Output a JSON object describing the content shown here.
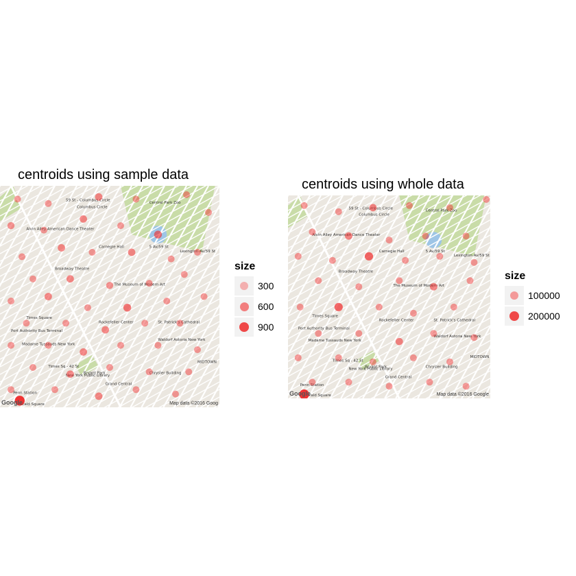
{
  "panels": [
    {
      "title": "centroids using sample data",
      "legend": {
        "title": "size",
        "keys": [
          {
            "label": "300",
            "color": "#f3a3a3"
          },
          {
            "label": "600",
            "color": "#f26a6a"
          },
          {
            "label": "900",
            "color": "#ef2a2a"
          }
        ]
      },
      "attribution": "Map data ©2016 Goog",
      "google": "Google"
    },
    {
      "title": "centroids using whole data",
      "legend": {
        "title": "size",
        "keys": [
          {
            "label": "100000",
            "color": "#f38a8a"
          },
          {
            "label": "200000",
            "color": "#ef2a2a"
          }
        ]
      },
      "attribution": "Map data ©2016 Google",
      "google": "Google"
    }
  ],
  "map_labels": [
    "Columbus Circle",
    "59 St - Columbus Circle",
    "Central Park Zoo",
    "Lexington Av/59 St",
    "Times Square",
    "Times Sq - 42 St",
    "Rockefeller Center",
    "St. Patrick's Cathedral",
    "The Museum of Modern Art",
    "Carnegie Hall",
    "Grand Central",
    "Bryant Park",
    "Chrysler Building",
    "Port Authority Bus Terminal",
    "Madame Tussauds New York",
    "New York Public Library",
    "Herald Square",
    "Penn Station",
    "Broadway Theatre",
    "Alvin Ailey American Dance Theater",
    "MIDTOWN",
    "5 Av/59 St",
    "Waldorf Astoria New York"
  ],
  "chart_data": [
    {
      "type": "scatter",
      "title": "centroids using sample data",
      "legend_title": "size",
      "legend_entries": [
        "300",
        "600",
        "900"
      ],
      "points": [
        [
          0.08,
          0.06
        ],
        [
          0.22,
          0.08
        ],
        [
          0.45,
          0.05
        ],
        [
          0.62,
          0.06
        ],
        [
          0.85,
          0.04
        ],
        [
          0.05,
          0.18
        ],
        [
          0.2,
          0.2
        ],
        [
          0.38,
          0.15
        ],
        [
          0.55,
          0.18
        ],
        [
          0.72,
          0.22
        ],
        [
          0.95,
          0.12
        ],
        [
          0.1,
          0.32
        ],
        [
          0.28,
          0.28
        ],
        [
          0.42,
          0.3
        ],
        [
          0.6,
          0.3
        ],
        [
          0.78,
          0.33
        ],
        [
          0.9,
          0.3
        ],
        [
          0.15,
          0.42
        ],
        [
          0.32,
          0.42
        ],
        [
          0.5,
          0.45
        ],
        [
          0.68,
          0.44
        ],
        [
          0.84,
          0.4
        ],
        [
          0.05,
          0.52
        ],
        [
          0.22,
          0.5
        ],
        [
          0.4,
          0.55
        ],
        [
          0.58,
          0.55
        ],
        [
          0.76,
          0.52
        ],
        [
          0.93,
          0.5
        ],
        [
          0.12,
          0.62
        ],
        [
          0.3,
          0.62
        ],
        [
          0.48,
          0.65
        ],
        [
          0.66,
          0.62
        ],
        [
          0.82,
          0.62
        ],
        [
          0.05,
          0.72
        ],
        [
          0.22,
          0.72
        ],
        [
          0.38,
          0.75
        ],
        [
          0.55,
          0.72
        ],
        [
          0.72,
          0.72
        ],
        [
          0.9,
          0.74
        ],
        [
          0.15,
          0.82
        ],
        [
          0.32,
          0.85
        ],
        [
          0.5,
          0.82
        ],
        [
          0.68,
          0.84
        ],
        [
          0.86,
          0.84
        ],
        [
          0.05,
          0.92
        ],
        [
          0.25,
          0.92
        ],
        [
          0.45,
          0.95
        ],
        [
          0.62,
          0.92
        ],
        [
          0.8,
          0.94
        ],
        [
          0.09,
          0.97
        ]
      ],
      "sizes": [
        300,
        300,
        400,
        300,
        300,
        350,
        300,
        400,
        300,
        500,
        300,
        300,
        400,
        300,
        400,
        300,
        300,
        300,
        400,
        350,
        300,
        300,
        300,
        400,
        300,
        500,
        300,
        300,
        300,
        300,
        400,
        300,
        300,
        300,
        300,
        400,
        300,
        300,
        300,
        300,
        400,
        300,
        300,
        300,
        300,
        300,
        400,
        300,
        300,
        900
      ]
    },
    {
      "type": "scatter",
      "title": "centroids using whole data",
      "legend_title": "size",
      "legend_entries": [
        "100000",
        "200000"
      ],
      "points": [
        [
          0.08,
          0.05
        ],
        [
          0.25,
          0.08
        ],
        [
          0.42,
          0.06
        ],
        [
          0.6,
          0.05
        ],
        [
          0.8,
          0.06
        ],
        [
          0.98,
          0.02
        ],
        [
          0.12,
          0.18
        ],
        [
          0.3,
          0.2
        ],
        [
          0.5,
          0.22
        ],
        [
          0.68,
          0.2
        ],
        [
          0.88,
          0.2
        ],
        [
          0.05,
          0.3
        ],
        [
          0.22,
          0.32
        ],
        [
          0.4,
          0.3
        ],
        [
          0.58,
          0.32
        ],
        [
          0.75,
          0.3
        ],
        [
          0.92,
          0.33
        ],
        [
          0.15,
          0.42
        ],
        [
          0.35,
          0.45
        ],
        [
          0.55,
          0.42
        ],
        [
          0.72,
          0.45
        ],
        [
          0.9,
          0.42
        ],
        [
          0.06,
          0.55
        ],
        [
          0.25,
          0.55
        ],
        [
          0.45,
          0.55
        ],
        [
          0.62,
          0.58
        ],
        [
          0.82,
          0.55
        ],
        [
          0.15,
          0.68
        ],
        [
          0.35,
          0.68
        ],
        [
          0.55,
          0.72
        ],
        [
          0.72,
          0.68
        ],
        [
          0.92,
          0.7
        ],
        [
          0.05,
          0.8
        ],
        [
          0.25,
          0.8
        ],
        [
          0.42,
          0.82
        ],
        [
          0.62,
          0.8
        ],
        [
          0.8,
          0.82
        ],
        [
          0.12,
          0.92
        ],
        [
          0.3,
          0.92
        ],
        [
          0.5,
          0.94
        ],
        [
          0.7,
          0.92
        ],
        [
          0.88,
          0.94
        ],
        [
          0.08,
          0.98
        ]
      ],
      "sizes": [
        100000,
        100000,
        120000,
        100000,
        100000,
        100000,
        100000,
        120000,
        100000,
        100000,
        100000,
        100000,
        100000,
        150000,
        100000,
        100000,
        100000,
        100000,
        100000,
        100000,
        120000,
        100000,
        100000,
        150000,
        100000,
        100000,
        100000,
        100000,
        100000,
        120000,
        100000,
        100000,
        100000,
        100000,
        100000,
        100000,
        100000,
        100000,
        100000,
        100000,
        100000,
        100000,
        200000
      ]
    }
  ]
}
